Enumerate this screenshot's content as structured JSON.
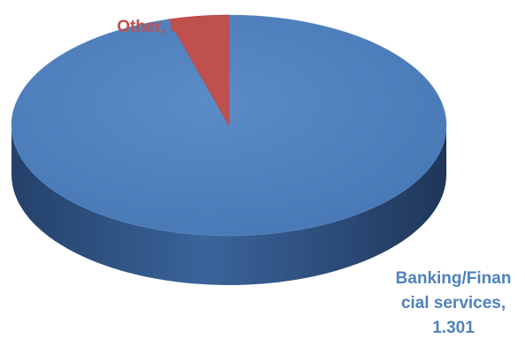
{
  "chart_data": {
    "type": "pie",
    "title": "",
    "legend": "none",
    "slices": [
      {
        "label": "Banking/Financial services",
        "value": 1301,
        "label_lines": [
          "Banking/Finan",
          "cial services,",
          "1.301"
        ],
        "color": "#4F81BD",
        "side_color": "#2D4F7C"
      },
      {
        "label": "Other",
        "value": 61,
        "label_lines": [
          "Other, 61"
        ],
        "color": "#C0504D",
        "side_color": "#7E2E2C"
      }
    ]
  }
}
